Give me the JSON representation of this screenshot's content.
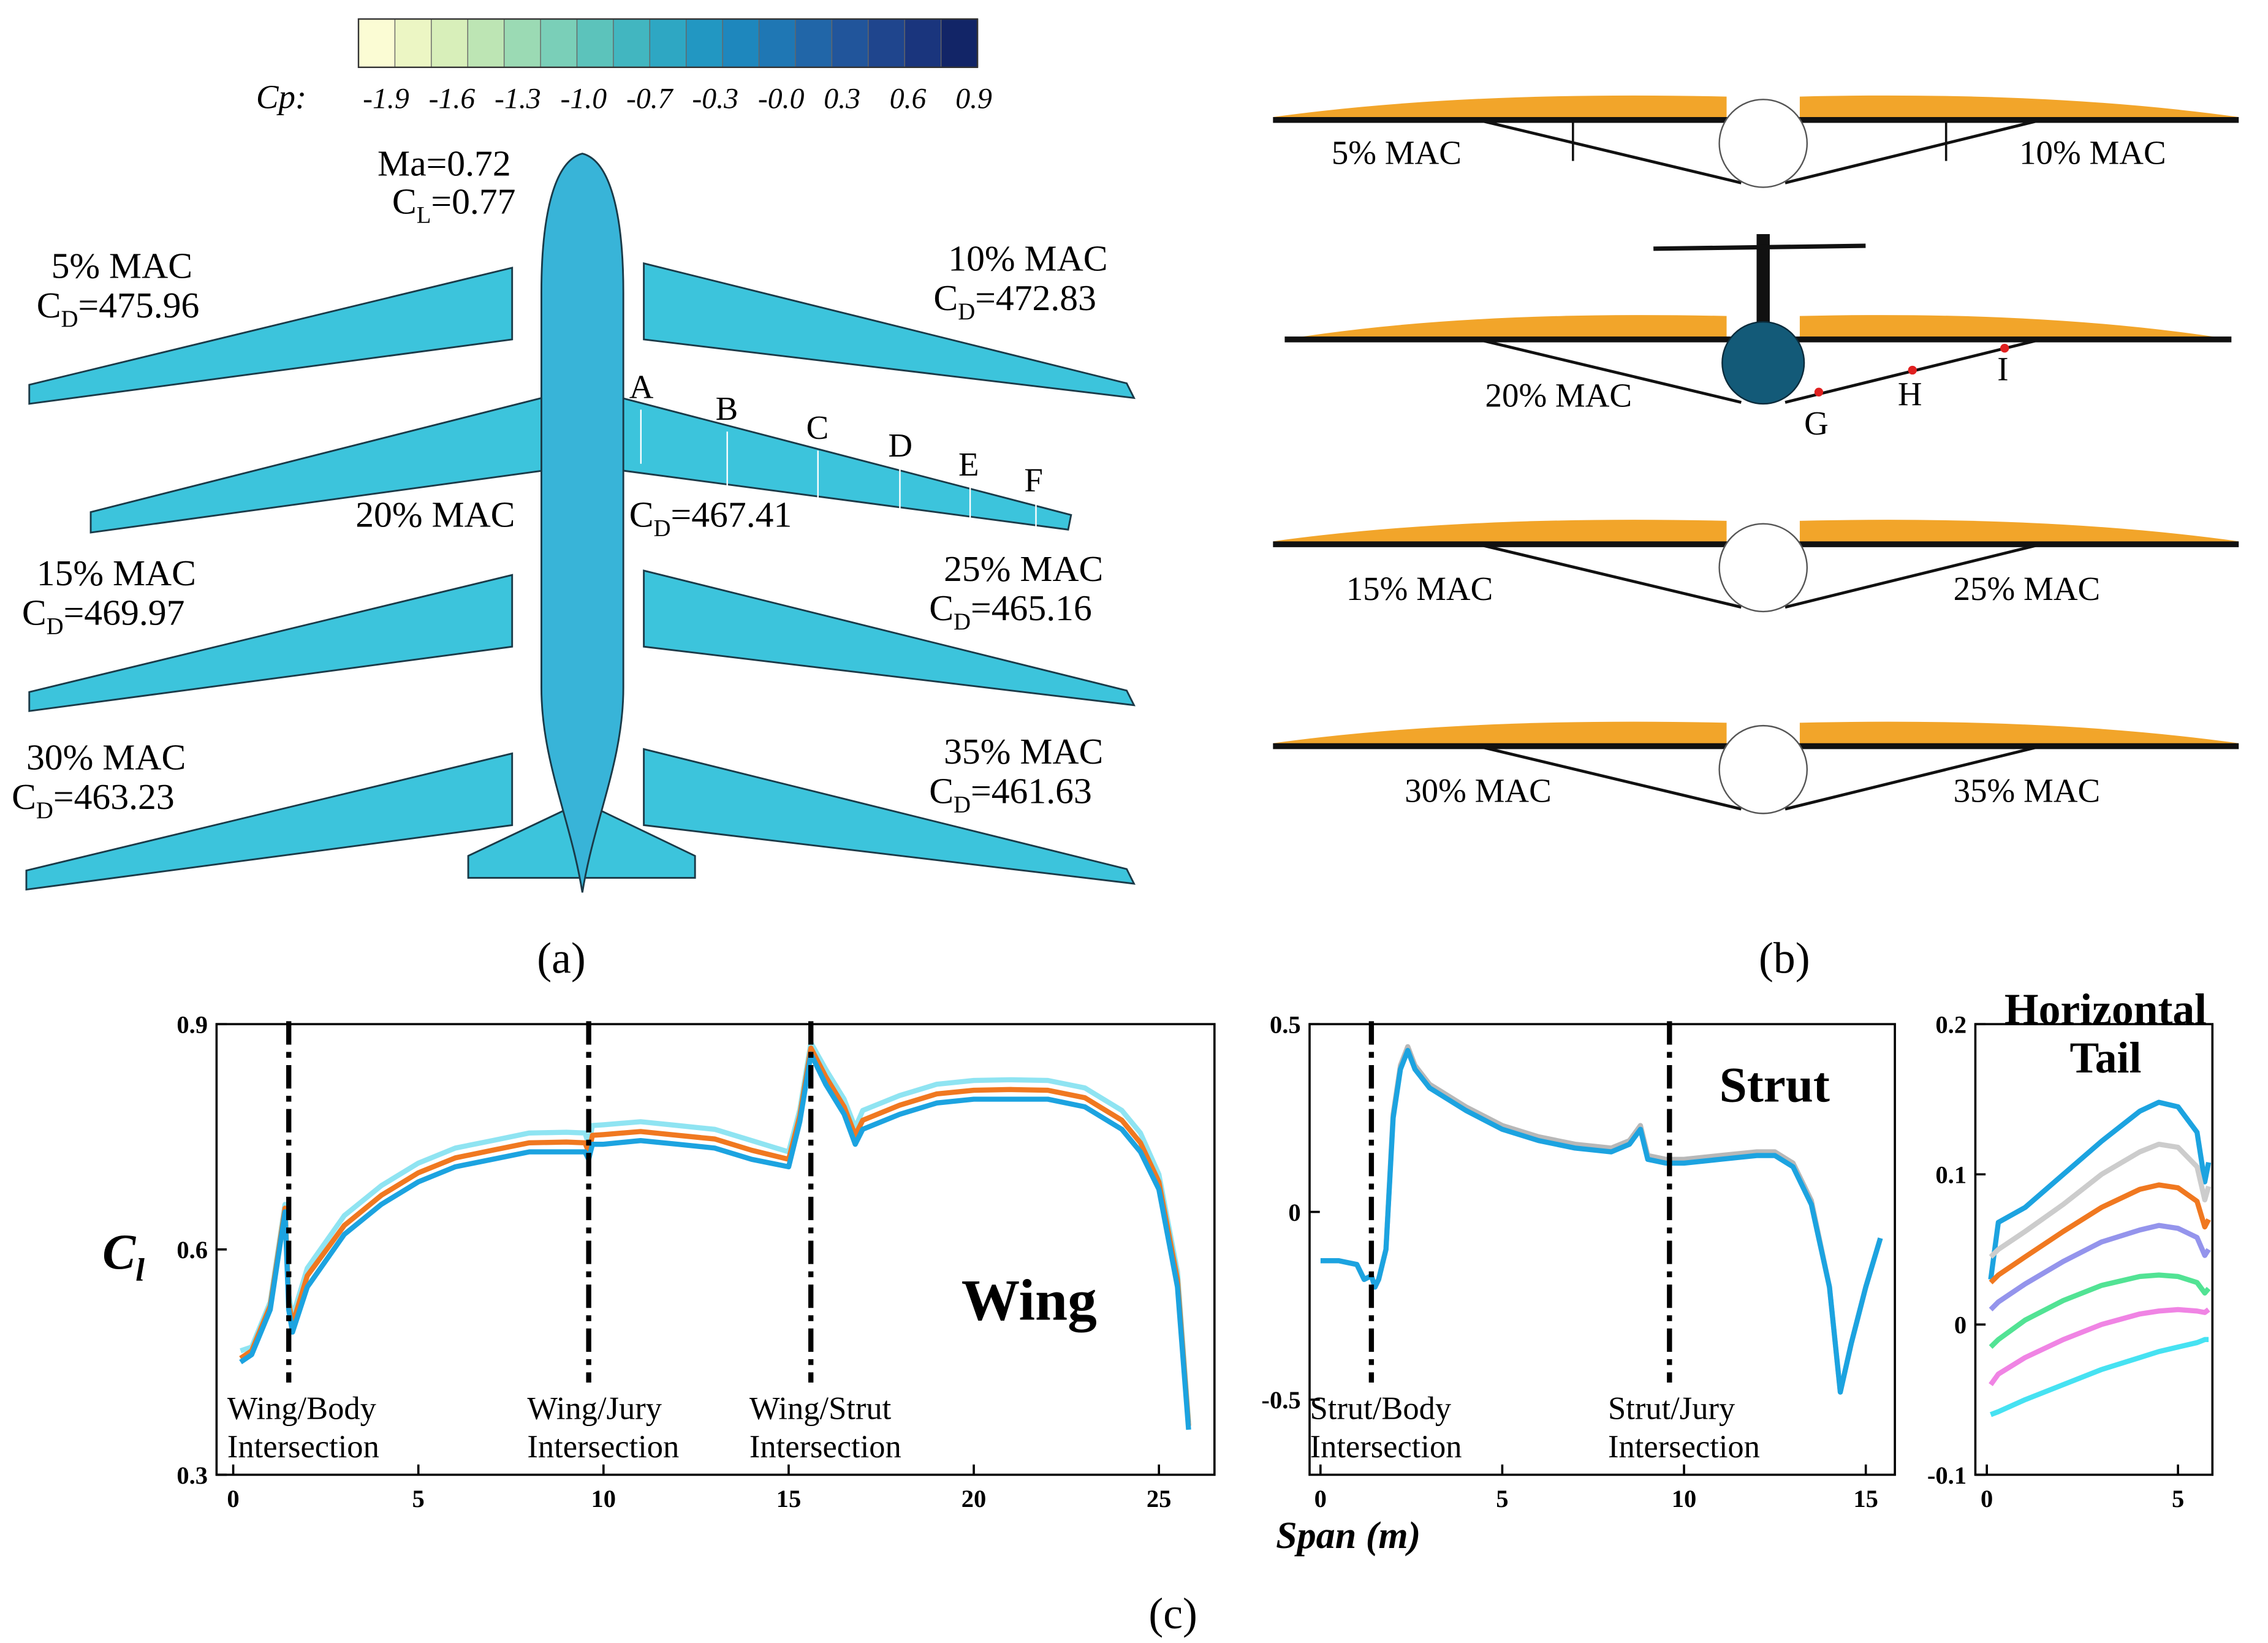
{
  "colorbar": {
    "label": "Cp:",
    "ticks": [
      "-1.9",
      "-1.6",
      "-1.3",
      "-1.0",
      "-0.7",
      "-0.3",
      "-0.0",
      "0.3",
      "0.6",
      "0.9"
    ],
    "colors": [
      "#fbfcd4",
      "#ecf6c4",
      "#d8efba",
      "#bde5b4",
      "#9bdab4",
      "#7acfb8",
      "#5cc3bb",
      "#42b6c0",
      "#2ea7c3",
      "#2297c2",
      "#1e87bd",
      "#1f77b4",
      "#2166a8",
      "#21559b",
      "#1f458d",
      "#1a357d",
      "#122567"
    ]
  },
  "panel_a": {
    "conditions": {
      "ma": "Ma=0.72",
      "cl": {
        "base": "C",
        "sub": "L",
        "rest": "=0.77"
      }
    },
    "configs": [
      {
        "mac": "5% MAC",
        "cd": {
          "base": "C",
          "sub": "D",
          "rest": "=475.96"
        }
      },
      {
        "mac": "10% MAC",
        "cd": {
          "base": "C",
          "sub": "D",
          "rest": "=472.83"
        }
      },
      {
        "mac": "15% MAC",
        "cd": {
          "base": "C",
          "sub": "D",
          "rest": "=469.97"
        }
      },
      {
        "mac": "25% MAC",
        "cd": {
          "base": "C",
          "sub": "D",
          "rest": "=465.16"
        }
      },
      {
        "mac": "30% MAC",
        "cd": {
          "base": "C",
          "sub": "D",
          "rest": "=463.23"
        }
      },
      {
        "mac": "35% MAC",
        "cd": {
          "base": "C",
          "sub": "D",
          "rest": "=461.63"
        }
      }
    ],
    "main": {
      "mac": "20% MAC",
      "cd": {
        "base": "C",
        "sub": "D",
        "rest": "=467.41"
      }
    },
    "points": [
      "A",
      "B",
      "C",
      "D",
      "E",
      "F"
    ]
  },
  "panel_b": {
    "labels": [
      "5% MAC",
      "10% MAC",
      "20% MAC",
      "15% MAC",
      "25% MAC",
      "30% MAC",
      "35% MAC"
    ],
    "points": [
      "G",
      "H",
      "I"
    ]
  },
  "captions": [
    "(a)",
    "(b)",
    "(c)"
  ],
  "charts": [
    {
      "type": "line",
      "label": "Wing",
      "ylabel": {
        "base": "C",
        "sub": "l"
      },
      "xlim": [
        -0.45,
        26.5
      ],
      "ylim": [
        0.3,
        0.9
      ],
      "xticks": [
        0,
        5,
        10,
        15,
        20,
        25
      ],
      "yticks": [
        0.3,
        0.6,
        0.9
      ],
      "x": [
        0.2,
        0.5,
        1,
        1.4,
        1.5,
        1.6,
        2,
        3,
        4,
        5,
        6,
        7,
        8,
        9,
        9.5,
        9.6,
        9.7,
        10,
        11,
        12,
        13,
        14,
        15,
        15.3,
        15.6,
        16,
        16.5,
        16.8,
        17,
        18,
        19,
        20,
        21,
        22,
        23,
        24,
        24.5,
        25,
        25.5,
        25.8
      ],
      "series": [
        {
          "color": "#8fe4f2",
          "values": [
            0.465,
            0.47,
            0.53,
            0.66,
            0.54,
            0.51,
            0.575,
            0.645,
            0.685,
            0.715,
            0.735,
            0.745,
            0.755,
            0.756,
            0.755,
            0.74,
            0.765,
            0.766,
            0.77,
            0.765,
            0.76,
            0.745,
            0.73,
            0.786,
            0.875,
            0.84,
            0.8,
            0.762,
            0.785,
            0.805,
            0.82,
            0.825,
            0.826,
            0.825,
            0.815,
            0.785,
            0.755,
            0.7,
            0.57,
            0.37
          ]
        },
        {
          "color": "#f07820",
          "values": [
            0.455,
            0.465,
            0.525,
            0.655,
            0.53,
            0.5,
            0.565,
            0.632,
            0.672,
            0.702,
            0.722,
            0.732,
            0.742,
            0.743,
            0.742,
            0.73,
            0.752,
            0.753,
            0.757,
            0.752,
            0.747,
            0.732,
            0.72,
            0.778,
            0.868,
            0.83,
            0.79,
            0.752,
            0.772,
            0.792,
            0.807,
            0.812,
            0.813,
            0.812,
            0.802,
            0.772,
            0.742,
            0.69,
            0.56,
            0.365
          ]
        },
        {
          "color": "#1ca3e0",
          "values": [
            0.45,
            0.46,
            0.52,
            0.65,
            0.52,
            0.49,
            0.55,
            0.62,
            0.66,
            0.69,
            0.71,
            0.72,
            0.73,
            0.73,
            0.73,
            0.72,
            0.74,
            0.74,
            0.745,
            0.74,
            0.735,
            0.72,
            0.71,
            0.77,
            0.86,
            0.82,
            0.78,
            0.74,
            0.76,
            0.78,
            0.795,
            0.8,
            0.8,
            0.8,
            0.79,
            0.76,
            0.73,
            0.68,
            0.55,
            0.36
          ]
        }
      ],
      "intersections": [
        {
          "x": 1.5,
          "lines": [
            "Wing/Body",
            "Intersection"
          ]
        },
        {
          "x": 9.6,
          "lines": [
            "Wing/Jury",
            "Intersection"
          ]
        },
        {
          "x": 15.6,
          "lines": [
            "Wing/Strut",
            "Intersection"
          ]
        }
      ]
    },
    {
      "type": "line",
      "label": "Strut",
      "xlabel": "Span (m)",
      "xlim": [
        -0.3,
        15.8
      ],
      "ylim": [
        -0.7,
        0.5
      ],
      "xticks": [
        0,
        5,
        10,
        15
      ],
      "yticks": [
        -0.5,
        0,
        0.5
      ],
      "x": [
        0,
        0.5,
        1,
        1.2,
        1.4,
        1.5,
        1.6,
        1.8,
        2,
        2.2,
        2.4,
        2.6,
        3,
        4,
        5,
        6,
        7,
        8,
        8.5,
        8.8,
        9,
        9.5,
        10,
        11,
        12,
        12.5,
        13,
        13.5,
        14,
        14.3,
        14.6,
        15,
        15.4
      ],
      "series": [
        {
          "color": "#b8b8b8",
          "values": [
            -0.13,
            -0.13,
            -0.14,
            -0.18,
            -0.17,
            -0.2,
            -0.18,
            -0.1,
            0.26,
            0.39,
            0.44,
            0.39,
            0.34,
            0.28,
            0.23,
            0.2,
            0.18,
            0.17,
            0.19,
            0.23,
            0.15,
            0.14,
            0.14,
            0.15,
            0.16,
            0.16,
            0.13,
            0.03,
            -0.2,
            -0.48,
            -0.35,
            -0.2,
            -0.07
          ]
        },
        {
          "color": "#1ca3e0",
          "values": [
            -0.13,
            -0.13,
            -0.14,
            -0.18,
            -0.17,
            -0.2,
            -0.18,
            -0.1,
            0.25,
            0.38,
            0.43,
            0.38,
            0.33,
            0.27,
            0.22,
            0.19,
            0.17,
            0.16,
            0.18,
            0.22,
            0.14,
            0.13,
            0.13,
            0.14,
            0.15,
            0.15,
            0.12,
            0.02,
            -0.2,
            -0.48,
            -0.35,
            -0.2,
            -0.07
          ]
        }
      ],
      "intersections": [
        {
          "x": 1.4,
          "lines": [
            "Strut/Body",
            "Intersection"
          ]
        },
        {
          "x": 9.6,
          "lines": [
            "Strut/Jury",
            "Intersection"
          ]
        }
      ]
    },
    {
      "type": "line",
      "title_lines": [
        "Horizontal",
        "Tail"
      ],
      "xlim": [
        -0.3,
        5.9
      ],
      "ylim": [
        -0.1,
        0.2
      ],
      "xticks": [
        0,
        5
      ],
      "yticks": [
        -0.1,
        0,
        0.1,
        0.2
      ],
      "x": [
        0.1,
        0.3,
        1,
        2,
        3,
        4,
        4.5,
        5,
        5.5,
        5.7,
        5.8
      ],
      "series": [
        {
          "color": "#1ca3e0",
          "values": [
            0.03,
            0.068,
            0.078,
            0.1,
            0.122,
            0.142,
            0.148,
            0.145,
            0.128,
            0.095,
            0.108
          ]
        },
        {
          "color": "#cccccc",
          "values": [
            0.045,
            0.05,
            0.062,
            0.08,
            0.1,
            0.115,
            0.12,
            0.118,
            0.105,
            0.083,
            0.092
          ]
        },
        {
          "color": "#f07820",
          "values": [
            0.028,
            0.033,
            0.045,
            0.062,
            0.078,
            0.09,
            0.093,
            0.091,
            0.082,
            0.065,
            0.07
          ]
        },
        {
          "color": "#9494ec",
          "values": [
            0.01,
            0.015,
            0.027,
            0.042,
            0.055,
            0.063,
            0.066,
            0.064,
            0.058,
            0.046,
            0.05
          ]
        },
        {
          "color": "#52e394",
          "values": [
            -0.015,
            -0.01,
            0.003,
            0.016,
            0.026,
            0.032,
            0.033,
            0.032,
            0.028,
            0.021,
            0.024
          ]
        },
        {
          "color": "#f084e4",
          "values": [
            -0.04,
            -0.033,
            -0.022,
            -0.01,
            0,
            0.007,
            0.009,
            0.01,
            0.009,
            0.008,
            0.01
          ]
        },
        {
          "color": "#46e2f2",
          "values": [
            -0.06,
            -0.058,
            -0.05,
            -0.04,
            -0.03,
            -0.022,
            -0.018,
            -0.015,
            -0.012,
            -0.01,
            -0.01
          ]
        }
      ]
    }
  ]
}
